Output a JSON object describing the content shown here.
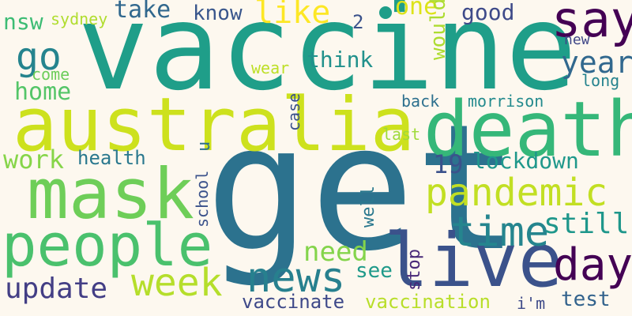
{
  "words": [
    {
      "id": "vaccine",
      "text": "vaccine",
      "color": "#1f9e89"
    },
    {
      "id": "get",
      "text": "get",
      "color": "#2c728e"
    },
    {
      "id": "australia",
      "text": "australia",
      "color": "#cde11d"
    },
    {
      "id": "death",
      "text": "death",
      "color": "#35b779"
    },
    {
      "id": "mask",
      "text": "mask",
      "color": "#6ece58"
    },
    {
      "id": "people",
      "text": "people",
      "color": "#4ac16d"
    },
    {
      "id": "live",
      "text": "live",
      "color": "#3b528b"
    },
    {
      "id": "say",
      "text": "say",
      "color": "#440154"
    },
    {
      "id": "pandemic",
      "text": "pandemic",
      "color": "#c2df23"
    },
    {
      "id": "time",
      "text": "time",
      "color": "#25858e"
    },
    {
      "id": "news",
      "text": "news",
      "color": "#27808e"
    },
    {
      "id": "day",
      "text": "day",
      "color": "#440154"
    },
    {
      "id": "week",
      "text": "week",
      "color": "#b5de2b"
    },
    {
      "id": "go",
      "text": "go",
      "color": "#25848e"
    },
    {
      "id": "like",
      "text": "like",
      "color": "#fde725"
    },
    {
      "id": "year",
      "text": "year",
      "color": "#31688e"
    },
    {
      "id": "still",
      "text": "still",
      "color": "#1f978b"
    },
    {
      "id": "update",
      "text": "update",
      "color": "#433e85"
    },
    {
      "id": "need",
      "text": "need",
      "color": "#84d44b"
    },
    {
      "id": "home",
      "text": "home",
      "color": "#54c568"
    },
    {
      "id": "work",
      "text": "work",
      "color": "#86d549"
    },
    {
      "id": "take",
      "text": "take",
      "color": "#31688e"
    },
    {
      "id": "one",
      "text": "one",
      "color": "#dde318"
    },
    {
      "id": "good",
      "text": "good",
      "color": "#3e4a89"
    },
    {
      "id": "know",
      "text": "know",
      "color": "#39568c"
    },
    {
      "id": "think",
      "text": "think",
      "color": "#21918c"
    },
    {
      "id": "lockdown",
      "text": "lockdown",
      "color": "#1f988b"
    },
    {
      "id": "nineteen",
      "text": "19",
      "color": "#3b528b"
    },
    {
      "id": "health",
      "text": "health",
      "color": "#2a788e"
    },
    {
      "id": "vaccinate",
      "text": "vaccinate",
      "color": "#3e4989"
    },
    {
      "id": "vaccination",
      "text": "vaccination",
      "color": "#b8de29"
    },
    {
      "id": "test",
      "text": "test",
      "color": "#33638d"
    },
    {
      "id": "nsw",
      "text": "nsw",
      "color": "#3dbc74"
    },
    {
      "id": "sydney",
      "text": "sydney",
      "color": "#b0dd2f"
    },
    {
      "id": "two",
      "text": "2",
      "color": "#3b528b"
    },
    {
      "id": "would",
      "text": "would",
      "color": "#addc30"
    },
    {
      "id": "new",
      "text": "new",
      "color": "#3f4788"
    },
    {
      "id": "long",
      "text": "long",
      "color": "#25838e"
    },
    {
      "id": "come",
      "text": "come",
      "color": "#6ccd5a"
    },
    {
      "id": "wear",
      "text": "wear",
      "color": "#bddf26"
    },
    {
      "id": "back",
      "text": "back",
      "color": "#2d708e"
    },
    {
      "id": "morrison",
      "text": "morrison",
      "color": "#238a8d"
    },
    {
      "id": "case",
      "text": "case",
      "color": "#3b528b"
    },
    {
      "id": "last",
      "text": "last",
      "color": "#9fda3a"
    },
    {
      "id": "school",
      "text": "school",
      "color": "#3b528b"
    },
    {
      "id": "u",
      "text": "u",
      "color": "#2d708e"
    },
    {
      "id": "well",
      "text": "well",
      "color": "#2a788e"
    },
    {
      "id": "stop",
      "text": "stop",
      "color": "#482878"
    },
    {
      "id": "see",
      "text": "see",
      "color": "#1f9a8a"
    },
    {
      "id": "im",
      "text": "i'm",
      "color": "#3e4a89"
    }
  ]
}
